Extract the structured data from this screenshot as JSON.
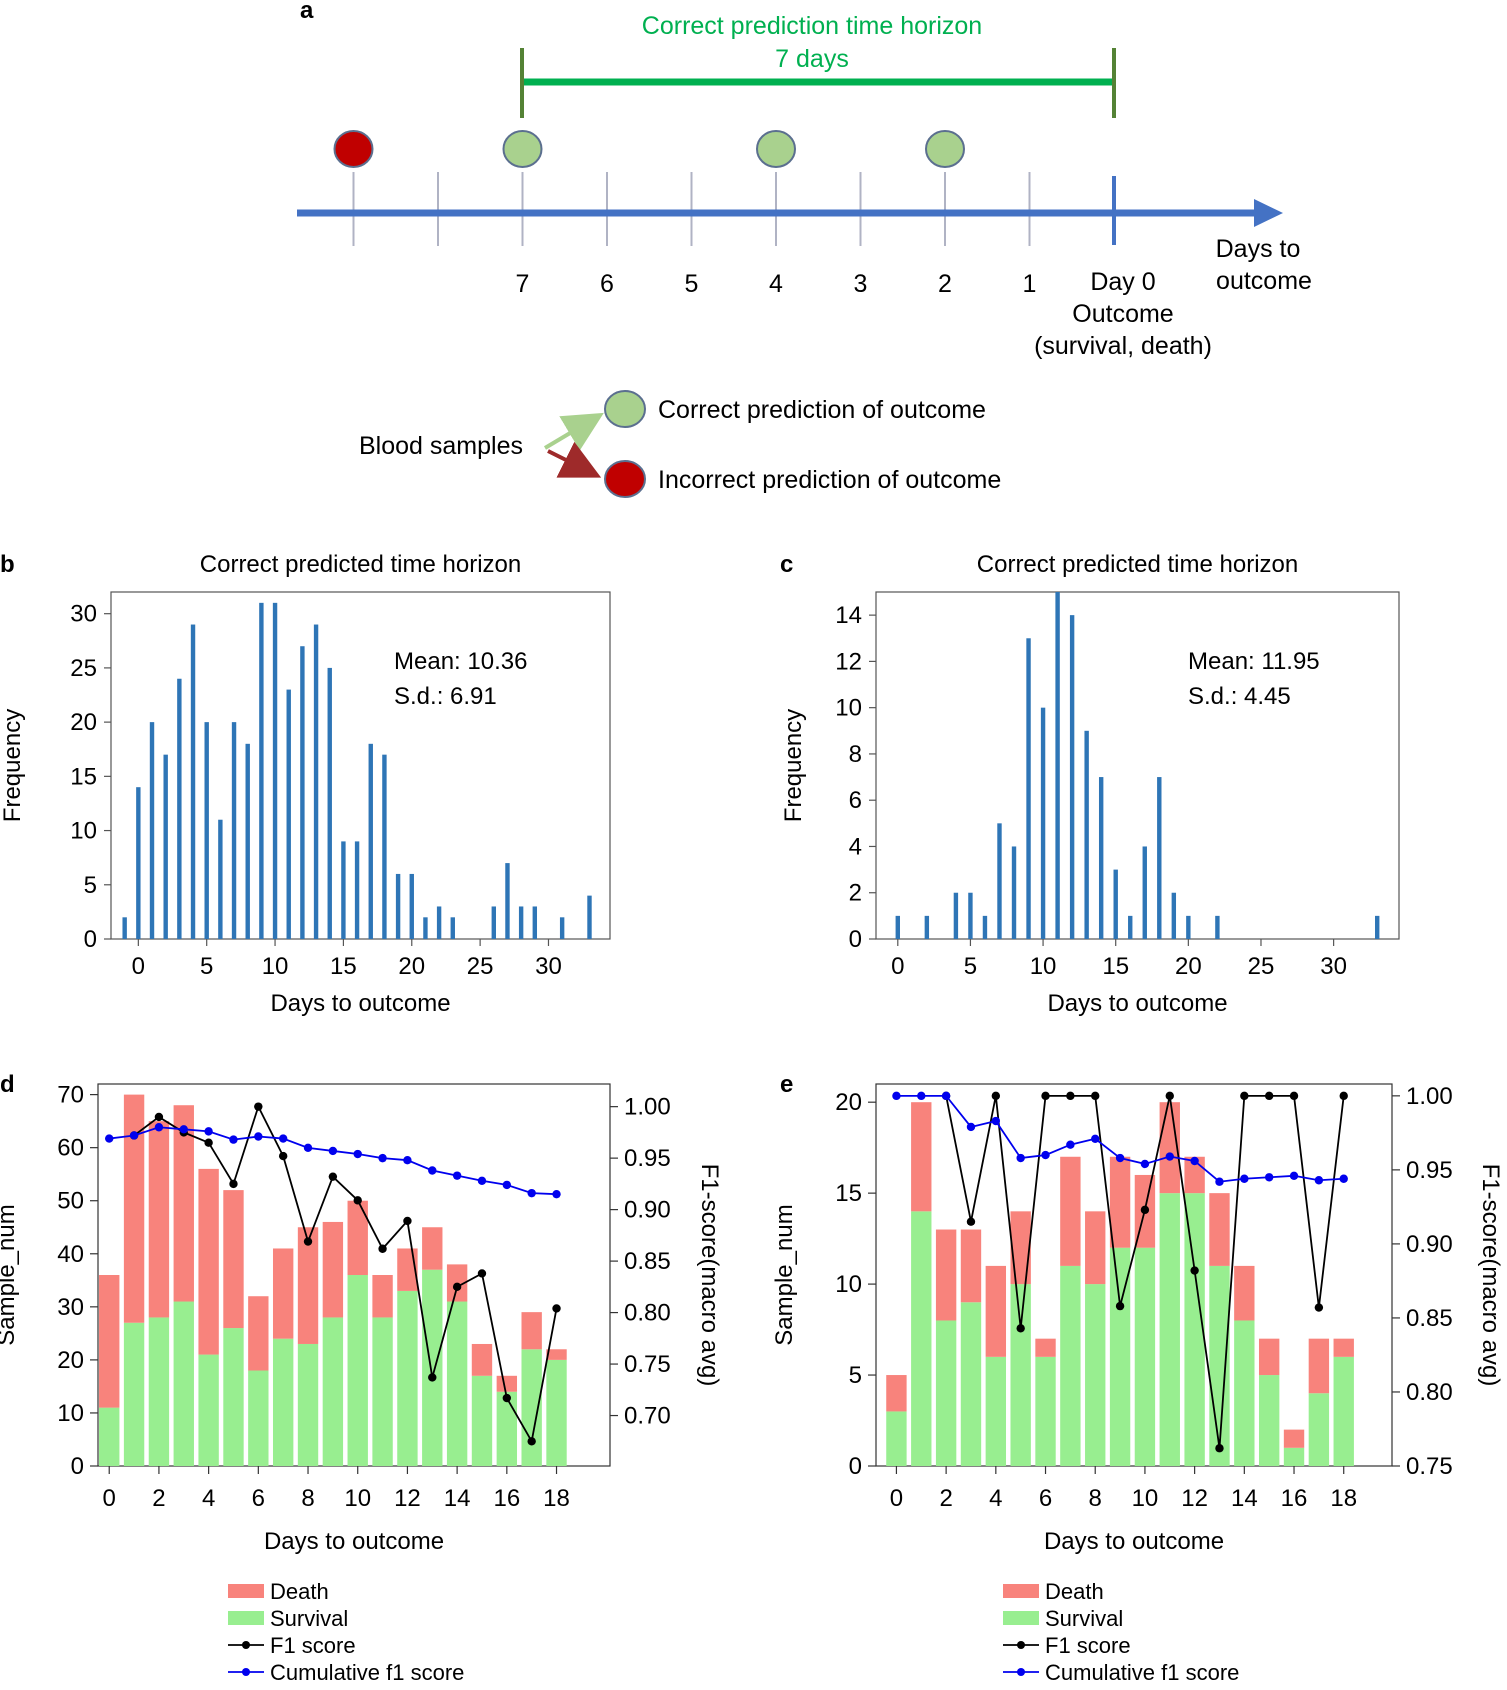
{
  "panel_a": {
    "label": "a",
    "horizon_title": "Correct prediction time horizon",
    "horizon_value": "7 days",
    "axis_label_line1": "Days to",
    "axis_label_line2": "outcome",
    "day_labels": [
      "7",
      "6",
      "5",
      "4",
      "3",
      "2",
      "1"
    ],
    "day0_line1": "Day 0",
    "day0_line2": "Outcome",
    "day0_line3": "(survival, death)",
    "samples": [
      {
        "day": 9,
        "status": "incorrect"
      },
      {
        "day": 7,
        "status": "correct"
      },
      {
        "day": 4,
        "status": "correct"
      },
      {
        "day": 2,
        "status": "correct"
      }
    ],
    "legend": {
      "source_label": "Blood samples",
      "correct_label": "Correct prediction of outcome",
      "incorrect_label": "Incorrect prediction of outcome"
    }
  },
  "colors": {
    "timeline": "#4472c4",
    "horizon": "#00b050",
    "correct": "#a9d18e",
    "incorrect": "#c00000",
    "hist_bar": "#2e75b6",
    "death": "#f8837c",
    "survival": "#98ee90",
    "f1": "#000000",
    "cumulative_f1": "#0000ee"
  },
  "chart_data": [
    {
      "panel": "b",
      "type": "bar",
      "title": "Correct predicted time horizon",
      "xlabel": "Days to outcome",
      "ylabel": "Frequency",
      "x": [
        -1,
        0,
        1,
        2,
        3,
        4,
        5,
        6,
        7,
        8,
        9,
        10,
        11,
        12,
        13,
        14,
        15,
        16,
        17,
        18,
        19,
        20,
        21,
        22,
        23,
        26,
        27,
        28,
        29,
        31,
        33
      ],
      "values": [
        2,
        14,
        20,
        17,
        24,
        29,
        20,
        11,
        20,
        18,
        31,
        31,
        23,
        27,
        29,
        25,
        9,
        9,
        18,
        17,
        6,
        6,
        2,
        3,
        2,
        3,
        7,
        3,
        3,
        2,
        4
      ],
      "xlim": [
        -2,
        34.5
      ],
      "ylim": [
        0,
        32
      ],
      "xticks": [
        0,
        5,
        10,
        15,
        20,
        25,
        30
      ],
      "yticks": [
        0,
        5,
        10,
        15,
        20,
        25,
        30
      ],
      "annotation": [
        "Mean: 10.36",
        "S.d.: 6.91"
      ]
    },
    {
      "panel": "c",
      "type": "bar",
      "title": "Correct predicted time horizon",
      "xlabel": "Days to outcome",
      "ylabel": "Frequency",
      "x": [
        0,
        2,
        4,
        5,
        6,
        7,
        8,
        9,
        10,
        11,
        12,
        13,
        14,
        15,
        16,
        17,
        18,
        19,
        20,
        22,
        33
      ],
      "values": [
        1,
        1,
        2,
        2,
        1,
        5,
        4,
        13,
        10,
        15,
        14,
        9,
        7,
        3,
        1,
        4,
        7,
        2,
        1,
        1,
        1
      ],
      "xlim": [
        -1.5,
        34.5
      ],
      "ylim": [
        0,
        15
      ],
      "xticks": [
        0,
        5,
        10,
        15,
        20,
        25,
        30
      ],
      "yticks": [
        0,
        2,
        4,
        6,
        8,
        10,
        12,
        14
      ],
      "annotation": [
        "Mean: 11.95",
        "S.d.: 4.45"
      ]
    },
    {
      "panel": "d",
      "type": "bar",
      "stacked": true,
      "xlabel": "Days to outcome",
      "ylabel": "Sample_num",
      "y2label": "F1-score(macro avg)",
      "categories": [
        0,
        1,
        2,
        3,
        4,
        5,
        6,
        7,
        8,
        9,
        10,
        11,
        12,
        13,
        14,
        15,
        16,
        17,
        18
      ],
      "series": [
        {
          "name": "Survival",
          "values": [
            11,
            27,
            28,
            31,
            21,
            26,
            18,
            24,
            23,
            28,
            36,
            28,
            33,
            37,
            31,
            17,
            14,
            22,
            20
          ]
        },
        {
          "name": "Death",
          "values": [
            25,
            43,
            37,
            37,
            35,
            26,
            14,
            17,
            22,
            18,
            14,
            8,
            8,
            8,
            7,
            6,
            3,
            7,
            2
          ]
        },
        {
          "name": "F1 score",
          "values": [
            null,
            0.972,
            0.99,
            0.975,
            0.965,
            0.925,
            1.0,
            0.952,
            0.869,
            0.932,
            0.909,
            0.862,
            0.889,
            0.737,
            0.825,
            0.838,
            0.717,
            0.675,
            0.804
          ]
        },
        {
          "name": "Cumulative f1 score",
          "values": [
            0.969,
            0.972,
            0.98,
            0.978,
            0.976,
            0.968,
            0.971,
            0.969,
            0.96,
            0.957,
            0.954,
            0.95,
            0.948,
            0.938,
            0.933,
            0.928,
            0.924,
            0.916,
            0.915
          ]
        }
      ],
      "ylim": [
        0,
        72
      ],
      "y2lim": [
        0.651,
        1.022
      ],
      "xticks": [
        0,
        2,
        4,
        6,
        8,
        10,
        12,
        14,
        16,
        18
      ],
      "yticks": [
        0,
        10,
        20,
        30,
        40,
        50,
        60,
        70
      ],
      "y2ticks": [
        "0.70",
        "0.75",
        "0.80",
        "0.85",
        "0.90",
        "0.95",
        "1.00"
      ],
      "legend": [
        "Death",
        "Survival",
        "F1 score",
        "Cumulative f1 score"
      ]
    },
    {
      "panel": "e",
      "type": "bar",
      "stacked": true,
      "xlabel": "Days to outcome",
      "ylabel": "Sample_num",
      "y2label": "F1-score(macro avg)",
      "categories": [
        0,
        1,
        2,
        3,
        4,
        5,
        6,
        7,
        8,
        9,
        10,
        11,
        12,
        13,
        14,
        15,
        16,
        17,
        18
      ],
      "series": [
        {
          "name": "Survival",
          "values": [
            3,
            14,
            8,
            9,
            6,
            10,
            6,
            11,
            10,
            12,
            12,
            15,
            15,
            11,
            8,
            5,
            1,
            4,
            6
          ]
        },
        {
          "name": "Death",
          "values": [
            2,
            6,
            5,
            4,
            5,
            4,
            1,
            6,
            4,
            5,
            4,
            5,
            2,
            4,
            3,
            2,
            1,
            3,
            1
          ]
        },
        {
          "name": "F1 score",
          "values": [
            null,
            null,
            1.0,
            0.915,
            1.0,
            0.843,
            1.0,
            1.0,
            1.0,
            0.858,
            0.923,
            1.0,
            0.882,
            0.762,
            1.0,
            1.0,
            1.0,
            0.857,
            1.0
          ]
        },
        {
          "name": "Cumulative f1 score",
          "values": [
            1.0,
            1.0,
            1.0,
            0.979,
            0.983,
            0.958,
            0.96,
            0.967,
            0.971,
            0.958,
            0.954,
            0.959,
            0.956,
            0.942,
            0.944,
            0.945,
            0.946,
            0.943,
            0.944
          ]
        }
      ],
      "ylim": [
        0,
        21
      ],
      "y2lim": [
        0.75,
        1.008
      ],
      "xticks": [
        0,
        2,
        4,
        6,
        8,
        10,
        12,
        14,
        16,
        18
      ],
      "yticks": [
        0,
        5,
        10,
        15,
        20
      ],
      "y2ticks": [
        "0.75",
        "0.80",
        "0.85",
        "0.90",
        "0.95",
        "1.00"
      ],
      "legend": [
        "Death",
        "Survival",
        "F1 score",
        "Cumulative f1 score"
      ]
    }
  ]
}
